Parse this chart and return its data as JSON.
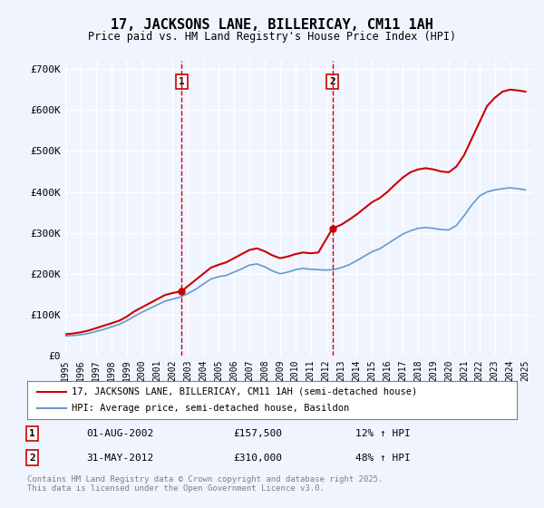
{
  "title": "17, JACKSONS LANE, BILLERICAY, CM11 1AH",
  "subtitle": "Price paid vs. HM Land Registry's House Price Index (HPI)",
  "legend_line1": "17, JACKSONS LANE, BILLERICAY, CM11 1AH (semi-detached house)",
  "legend_line2": "HPI: Average price, semi-detached house, Basildon",
  "footer": "Contains HM Land Registry data © Crown copyright and database right 2025.\nThis data is licensed under the Open Government Licence v3.0.",
  "annotation1": {
    "num": "1",
    "date": "01-AUG-2002",
    "price": "£157,500",
    "change": "12% ↑ HPI"
  },
  "annotation2": {
    "num": "2",
    "date": "31-MAY-2012",
    "price": "£310,000",
    "change": "48% ↑ HPI"
  },
  "vline1_year": 2002.58,
  "vline2_year": 2012.41,
  "price_paid_x": [
    1995.0,
    1995.5,
    1996.0,
    1996.5,
    1997.0,
    1997.5,
    1998.0,
    1998.5,
    1999.0,
    1999.5,
    2000.0,
    2000.5,
    2001.0,
    2001.5,
    2002.0,
    2002.58,
    2003.0,
    2003.5,
    2004.0,
    2004.5,
    2005.0,
    2005.5,
    2006.0,
    2006.5,
    2007.0,
    2007.5,
    2008.0,
    2008.5,
    2009.0,
    2009.5,
    2010.0,
    2010.5,
    2011.0,
    2011.5,
    2012.41,
    2012.5,
    2013.0,
    2013.5,
    2014.0,
    2014.5,
    2015.0,
    2015.5,
    2016.0,
    2016.5,
    2017.0,
    2017.5,
    2018.0,
    2018.5,
    2019.0,
    2019.5,
    2020.0,
    2020.5,
    2021.0,
    2021.5,
    2022.0,
    2022.5,
    2023.0,
    2023.5,
    2024.0,
    2024.5,
    2025.0
  ],
  "price_paid_y": [
    52000,
    54000,
    57000,
    61000,
    67000,
    73000,
    79000,
    85000,
    95000,
    108000,
    118000,
    128000,
    138000,
    148000,
    153000,
    157500,
    170000,
    185000,
    200000,
    215000,
    222000,
    228000,
    238000,
    248000,
    258000,
    262000,
    255000,
    245000,
    238000,
    242000,
    248000,
    252000,
    250000,
    252000,
    310000,
    312000,
    320000,
    332000,
    345000,
    360000,
    375000,
    385000,
    400000,
    418000,
    435000,
    448000,
    455000,
    458000,
    455000,
    450000,
    448000,
    462000,
    490000,
    530000,
    570000,
    610000,
    630000,
    645000,
    650000,
    648000,
    645000
  ],
  "hpi_x": [
    1995.0,
    1995.5,
    1996.0,
    1996.5,
    1997.0,
    1997.5,
    1998.0,
    1998.5,
    1999.0,
    1999.5,
    2000.0,
    2000.5,
    2001.0,
    2001.5,
    2002.0,
    2002.5,
    2003.0,
    2003.5,
    2004.0,
    2004.5,
    2005.0,
    2005.5,
    2006.0,
    2006.5,
    2007.0,
    2007.5,
    2008.0,
    2008.5,
    2009.0,
    2009.5,
    2010.0,
    2010.5,
    2011.0,
    2011.5,
    2012.0,
    2012.5,
    2013.0,
    2013.5,
    2014.0,
    2014.5,
    2015.0,
    2015.5,
    2016.0,
    2016.5,
    2017.0,
    2017.5,
    2018.0,
    2018.5,
    2019.0,
    2019.5,
    2020.0,
    2020.5,
    2021.0,
    2021.5,
    2022.0,
    2022.5,
    2023.0,
    2023.5,
    2024.0,
    2024.5,
    2025.0
  ],
  "hpi_y": [
    48000,
    49000,
    51000,
    54000,
    59000,
    64000,
    70000,
    76000,
    85000,
    96000,
    106000,
    115000,
    124000,
    133000,
    138000,
    143000,
    152000,
    162000,
    175000,
    187000,
    193000,
    196000,
    204000,
    212000,
    221000,
    224000,
    217000,
    207000,
    200000,
    204000,
    210000,
    213000,
    211000,
    210000,
    209000,
    210000,
    215000,
    222000,
    232000,
    243000,
    254000,
    261000,
    273000,
    285000,
    297000,
    305000,
    311000,
    313000,
    311000,
    308000,
    307000,
    318000,
    342000,
    368000,
    390000,
    400000,
    405000,
    408000,
    410000,
    408000,
    405000
  ],
  "xlim": [
    1995,
    2025.5
  ],
  "ylim": [
    0,
    720000
  ],
  "yticks": [
    0,
    100000,
    200000,
    300000,
    400000,
    500000,
    600000,
    700000
  ],
  "ytick_labels": [
    "£0",
    "£100K",
    "£200K",
    "£300K",
    "£400K",
    "£500K",
    "£600K",
    "£700K"
  ],
  "xticks": [
    1995,
    1996,
    1997,
    1998,
    1999,
    2000,
    2001,
    2002,
    2003,
    2004,
    2005,
    2006,
    2007,
    2008,
    2009,
    2010,
    2011,
    2012,
    2013,
    2014,
    2015,
    2016,
    2017,
    2018,
    2019,
    2020,
    2021,
    2022,
    2023,
    2024,
    2025
  ],
  "bg_color": "#f0f4ff",
  "plot_bg_color": "#f0f4ff",
  "grid_color": "#ffffff",
  "red_line_color": "#cc0000",
  "blue_line_color": "#6699cc",
  "vline_color": "#cc0000",
  "marker1_x": 2002.58,
  "marker1_y": 157500,
  "marker2_x": 2012.41,
  "marker2_y": 310000
}
